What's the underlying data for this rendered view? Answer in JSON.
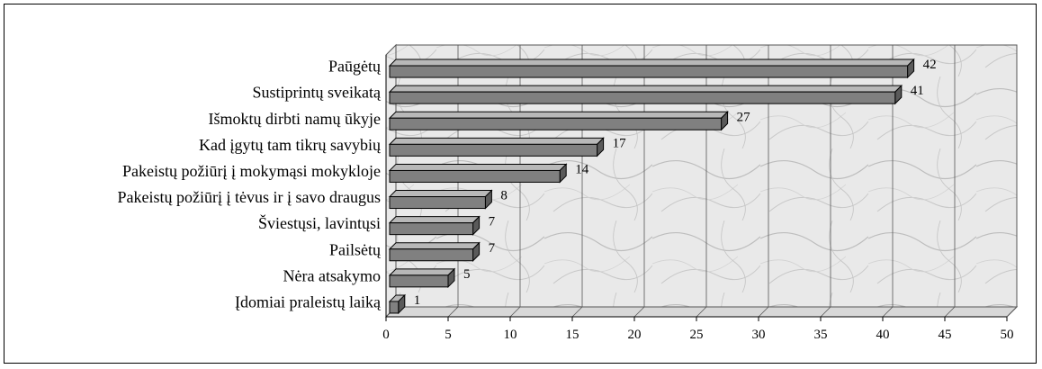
{
  "chart_data": {
    "type": "bar",
    "orientation": "horizontal",
    "style": "3d",
    "categories": [
      "Paūgėtų",
      "Sustiprintų sveikatą",
      "Išmoktų dirbti namų ūkyje",
      "Kad įgytų tam tikrų savybių",
      "Pakeistų požiūrį į mokymąsi mokykloje",
      "Pakeistų požiūrį į tėvus ir į savo draugus",
      "Šviestųsi, lavintųsi",
      "Pailsėtų",
      "Nėra atsakymo",
      "Įdomiai praleistų laiką"
    ],
    "values": [
      42,
      41,
      27,
      17,
      14,
      8,
      7,
      7,
      5,
      1
    ],
    "xlim": [
      0,
      50
    ],
    "xticks": [
      0,
      5,
      10,
      15,
      20,
      25,
      30,
      35,
      40,
      45,
      50
    ],
    "grid": true,
    "legend": "none",
    "colors": {
      "bar_front": "#808080",
      "bar_top": "#b8b8b8",
      "bar_side": "#5a5a5a",
      "plot_background": "#e6e6e6"
    },
    "title": "",
    "xlabel": "",
    "ylabel": ""
  }
}
